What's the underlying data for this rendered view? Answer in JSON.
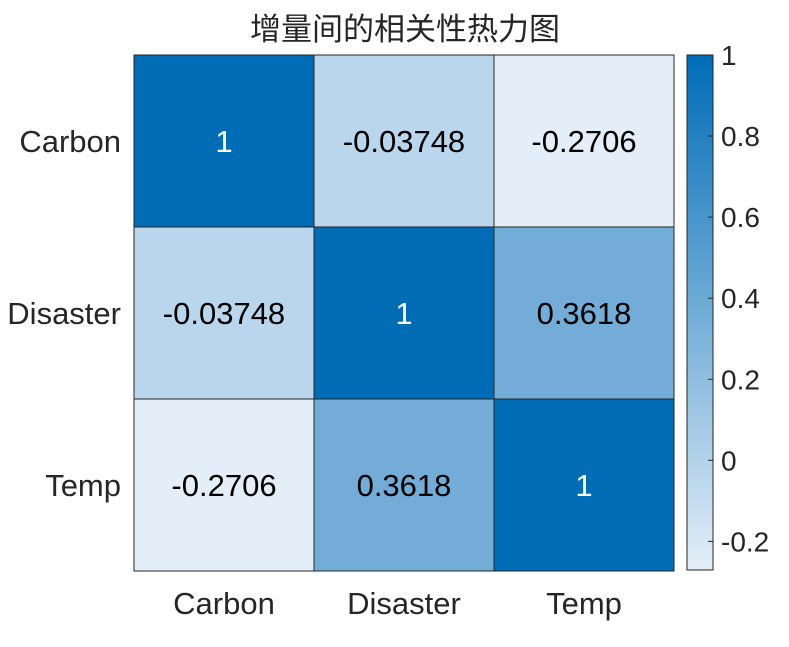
{
  "chart_data": {
    "type": "heatmap",
    "title": "增量间的相关性热力图",
    "x_categories": [
      "Carbon",
      "Disaster",
      "Temp"
    ],
    "y_categories": [
      "Carbon",
      "Disaster",
      "Temp"
    ],
    "values": [
      [
        1,
        -0.03748,
        -0.2706
      ],
      [
        -0.03748,
        1,
        0.3618
      ],
      [
        -0.2706,
        0.3618,
        1
      ]
    ],
    "value_labels": [
      [
        "1",
        "-0.03748",
        "-0.2706"
      ],
      [
        "-0.03748",
        "1",
        "0.3618"
      ],
      [
        "-0.2706",
        "0.3618",
        "1"
      ]
    ],
    "colorbar": {
      "limits": [
        -0.2706,
        1
      ],
      "ticks": [
        -0.2,
        0,
        0.2,
        0.4,
        0.6,
        0.8,
        1
      ],
      "tick_labels": [
        "-0.2",
        "0",
        "0.2",
        "0.4",
        "0.6",
        "0.8",
        "1"
      ],
      "low_color": "#e4eef8",
      "high_color": "#006cb6"
    },
    "grid": true,
    "legend": "colorbar-right"
  }
}
